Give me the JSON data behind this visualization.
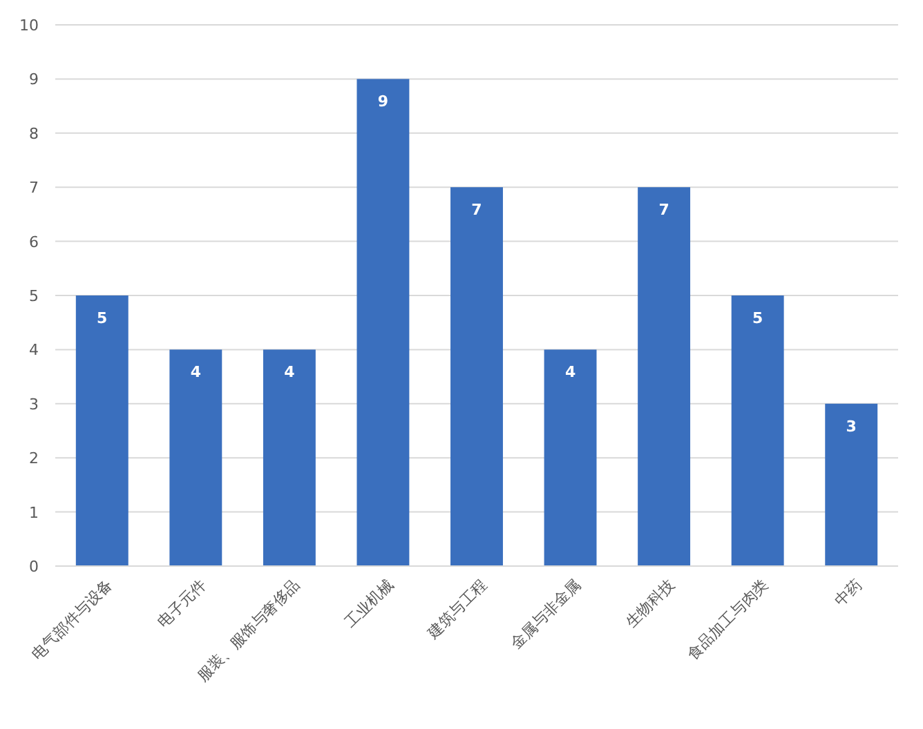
{
  "chart_data": {
    "type": "bar",
    "categories": [
      "电气部件与设备",
      "电子元件",
      "服装、服饰与奢侈品",
      "工业机械",
      "建筑与工程",
      "金属与非金属",
      "生物科技",
      "食品加工与肉类",
      "中药"
    ],
    "values": [
      5,
      4,
      4,
      9,
      7,
      4,
      7,
      5,
      3
    ],
    "color": "#3a6fbe",
    "ylim": [
      0,
      10
    ],
    "yticks": [
      0,
      1,
      2,
      3,
      4,
      5,
      6,
      7,
      8,
      9,
      10
    ],
    "grid": "y",
    "data_labels": true
  }
}
